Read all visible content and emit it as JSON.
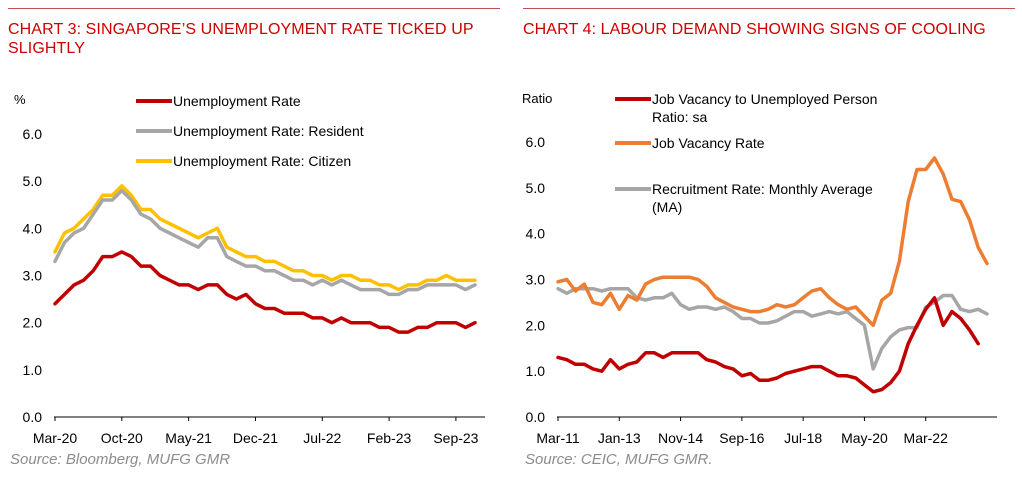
{
  "charts": [
    {
      "title": "CHART 3: SINGAPORE’S UNEMPLOYMENT RATE TICKED UP SLIGHTLY",
      "source": "Source: Bloomberg, MUFG GMR"
    },
    {
      "title": "CHART 4: LABOUR DEMAND SHOWING SIGNS OF COOLING",
      "source": "Source: CEIC, MUFG GMR."
    }
  ],
  "chart_data": [
    {
      "type": "line",
      "title": "CHART 3: SINGAPORE’S UNEMPLOYMENT RATE TICKED UP SLIGHTLY",
      "ylabel": "%",
      "xlabel": "",
      "ylim": [
        0,
        6
      ],
      "yticks": [
        "0.0",
        "1.0",
        "2.0",
        "3.0",
        "4.0",
        "5.0",
        "6.0"
      ],
      "x_tick_labels": [
        "Mar-20",
        "Oct-20",
        "May-21",
        "Dec-21",
        "Jul-22",
        "Feb-23",
        "Sep-23"
      ],
      "x_tick_index": [
        0,
        7,
        14,
        21,
        28,
        35,
        42
      ],
      "grid": false,
      "legend": "top",
      "series": [
        {
          "name": "Unemployment Rate",
          "color": "#c00000",
          "values": [
            2.4,
            2.6,
            2.8,
            2.9,
            3.1,
            3.4,
            3.4,
            3.5,
            3.4,
            3.2,
            3.2,
            3.0,
            2.9,
            2.8,
            2.8,
            2.7,
            2.8,
            2.8,
            2.6,
            2.5,
            2.6,
            2.4,
            2.3,
            2.3,
            2.2,
            2.2,
            2.2,
            2.1,
            2.1,
            2.0,
            2.1,
            2.0,
            2.0,
            2.0,
            1.9,
            1.9,
            1.8,
            1.8,
            1.9,
            1.9,
            2.0,
            2.0,
            2.0,
            1.9,
            2.0
          ]
        },
        {
          "name": "Unemployment Rate: Resident",
          "color": "#a6a6a6",
          "values": [
            3.3,
            3.7,
            3.9,
            4.0,
            4.3,
            4.6,
            4.6,
            4.8,
            4.6,
            4.3,
            4.2,
            4.0,
            3.9,
            3.8,
            3.7,
            3.6,
            3.8,
            3.8,
            3.4,
            3.3,
            3.2,
            3.2,
            3.1,
            3.1,
            3.0,
            2.9,
            2.9,
            2.8,
            2.9,
            2.8,
            2.9,
            2.8,
            2.7,
            2.7,
            2.7,
            2.6,
            2.6,
            2.7,
            2.7,
            2.8,
            2.8,
            2.8,
            2.8,
            2.7,
            2.8
          ]
        },
        {
          "name": "Unemployment Rate: Citizen",
          "color": "#ffc000",
          "values": [
            3.5,
            3.9,
            4.0,
            4.2,
            4.4,
            4.7,
            4.7,
            4.9,
            4.7,
            4.4,
            4.4,
            4.2,
            4.1,
            4.0,
            3.9,
            3.8,
            3.9,
            4.0,
            3.6,
            3.5,
            3.4,
            3.4,
            3.3,
            3.3,
            3.2,
            3.1,
            3.1,
            3.0,
            3.0,
            2.9,
            3.0,
            3.0,
            2.9,
            2.9,
            2.8,
            2.8,
            2.7,
            2.8,
            2.8,
            2.9,
            2.9,
            3.0,
            2.9,
            2.9,
            2.9
          ]
        }
      ]
    },
    {
      "type": "line",
      "title": "CHART 4: LABOUR DEMAND SHOWING SIGNS OF COOLING",
      "ylabel": "Ratio",
      "xlabel": "",
      "ylim": [
        0,
        6
      ],
      "yticks": [
        "0.0",
        "1.0",
        "2.0",
        "3.0",
        "4.0",
        "5.0",
        "6.0"
      ],
      "x_tick_labels": [
        "Mar-11",
        "Jan-13",
        "Nov-14",
        "Sep-16",
        "Jul-18",
        "May-20",
        "Mar-22"
      ],
      "x_tick_index": [
        0,
        7,
        14,
        21,
        28,
        35,
        42
      ],
      "grid": false,
      "legend": "top",
      "series": [
        {
          "name": "Job Vacancy to Unemployed Person Ratio: sa",
          "color": "#c00000",
          "values": [
            1.3,
            1.25,
            1.15,
            1.15,
            1.05,
            1.0,
            1.25,
            1.05,
            1.15,
            1.2,
            1.4,
            1.4,
            1.3,
            1.4,
            1.4,
            1.4,
            1.4,
            1.25,
            1.2,
            1.1,
            1.05,
            0.9,
            0.95,
            0.8,
            0.8,
            0.85,
            0.95,
            1.0,
            1.05,
            1.1,
            1.1,
            1.0,
            0.9,
            0.9,
            0.85,
            0.7,
            0.55,
            0.6,
            0.75,
            1.0,
            1.6,
            2.0,
            2.35,
            2.6,
            2.0,
            2.3,
            2.15,
            1.9,
            1.6
          ]
        },
        {
          "name": "Job Vacancy Rate",
          "color": "#ed7d31",
          "values": [
            2.95,
            3.0,
            2.75,
            2.9,
            2.5,
            2.45,
            2.7,
            2.35,
            2.65,
            2.55,
            2.9,
            3.0,
            3.05,
            3.05,
            3.05,
            3.05,
            3.0,
            2.85,
            2.6,
            2.5,
            2.4,
            2.35,
            2.3,
            2.3,
            2.35,
            2.45,
            2.4,
            2.45,
            2.6,
            2.75,
            2.8,
            2.6,
            2.45,
            2.35,
            2.4,
            2.2,
            2.0,
            2.55,
            2.7,
            3.4,
            4.7,
            5.4,
            5.4,
            5.65,
            5.3,
            4.75,
            4.7,
            4.3,
            3.7,
            3.35
          ]
        },
        {
          "name": "Recruitment Rate: Monthly Average (MA)",
          "color": "#a6a6a6",
          "values": [
            2.8,
            2.7,
            2.8,
            2.8,
            2.8,
            2.75,
            2.8,
            2.8,
            2.8,
            2.6,
            2.55,
            2.6,
            2.6,
            2.7,
            2.45,
            2.35,
            2.4,
            2.4,
            2.35,
            2.4,
            2.3,
            2.15,
            2.15,
            2.05,
            2.05,
            2.1,
            2.2,
            2.3,
            2.3,
            2.2,
            2.25,
            2.3,
            2.25,
            2.3,
            2.15,
            2.0,
            1.05,
            1.5,
            1.75,
            1.9,
            1.95,
            1.95,
            2.4,
            2.5,
            2.65,
            2.65,
            2.35,
            2.3,
            2.35,
            2.25
          ]
        }
      ]
    }
  ]
}
